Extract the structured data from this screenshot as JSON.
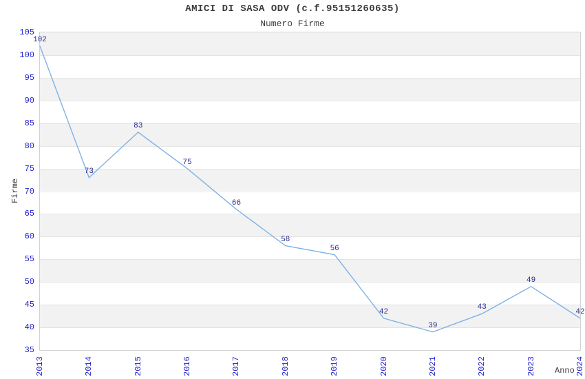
{
  "chart_data": {
    "type": "line",
    "title": "AMICI DI SASA ODV (c.f.95151260635)",
    "subtitle": "Numero Firme",
    "xlabel": "Anno",
    "ylabel": "Firme",
    "categories": [
      "2013",
      "2014",
      "2015",
      "2016",
      "2017",
      "2018",
      "2019",
      "2020",
      "2021",
      "2022",
      "2023",
      "2024"
    ],
    "values": [
      102,
      73,
      83,
      75,
      66,
      58,
      56,
      42,
      39,
      43,
      49,
      42
    ],
    "ylim": [
      35,
      105
    ],
    "ytick_step": 5,
    "yticks": [
      35,
      40,
      45,
      50,
      55,
      60,
      65,
      70,
      75,
      80,
      85,
      90,
      95,
      100,
      105
    ],
    "grid": "horizontal alternating bands",
    "legend_position": "none",
    "markers": "none",
    "colors": {
      "line": "#7FB2E5",
      "tick_label": "#2121CE",
      "data_label": "#2B2B8E",
      "title": "#3C3C3C",
      "band_gray": "#F2F2F2",
      "band_white": "#FFFFFF",
      "grid_line": "#E4E4E4",
      "axis_border": "#D2D2D2",
      "background": "#FFFFFF"
    }
  }
}
